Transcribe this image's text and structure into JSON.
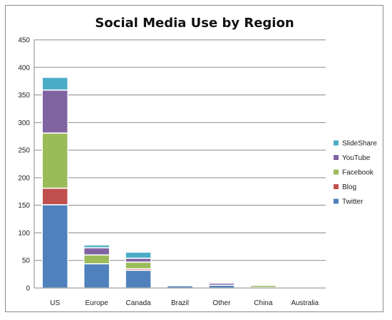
{
  "chart_data": {
    "type": "bar",
    "stacked": true,
    "title": "Social Media Use by Region",
    "xlabel": "",
    "ylabel": "",
    "ylim": [
      0,
      450
    ],
    "yticks": [
      0,
      50,
      100,
      150,
      200,
      250,
      300,
      350,
      400,
      450
    ],
    "grid": true,
    "legend_position": "right",
    "categories": [
      "US",
      "Europe",
      "Canada",
      "Brazil",
      "Other",
      "China",
      "Australia"
    ],
    "series": [
      {
        "name": "Twitter",
        "color": "#4f81bd",
        "values": [
          151,
          44,
          32,
          4,
          5,
          1,
          0
        ]
      },
      {
        "name": "Blog",
        "color": "#c0504d",
        "values": [
          30,
          0,
          3,
          0,
          0,
          0,
          0
        ]
      },
      {
        "name": "Facebook",
        "color": "#9bbb59",
        "values": [
          100,
          16,
          12,
          0,
          0,
          4,
          0
        ]
      },
      {
        "name": "YouTube",
        "color": "#8064a2",
        "values": [
          78,
          13,
          7,
          0,
          4,
          0,
          0
        ]
      },
      {
        "name": "SlideShare",
        "color": "#4bacc6",
        "values": [
          23,
          5,
          11,
          0,
          1,
          1,
          0
        ]
      }
    ]
  }
}
